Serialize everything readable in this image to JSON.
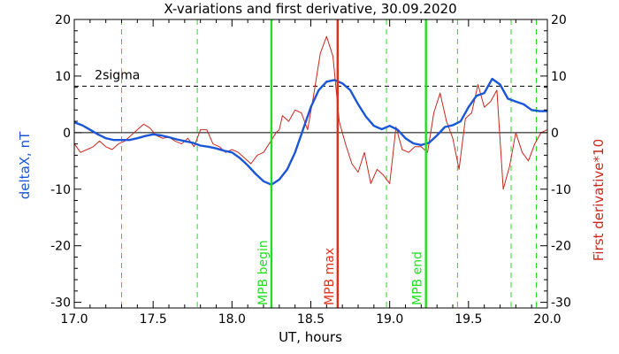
{
  "chart_data": {
    "type": "line",
    "title": "X-variations and first derivative, 30.09.2020",
    "xlabel": "UT, hours",
    "ylabel_left": "deltaX, nT",
    "ylabel_right": "First derivative*10",
    "xlim": [
      17.0,
      20.0
    ],
    "ylim": [
      -31,
      20
    ],
    "xticks": [
      "17.0",
      "17.5",
      "18.0",
      "18.5",
      "19.0",
      "19.5",
      "20.0"
    ],
    "yticks": [
      "-30",
      "-20",
      "-10",
      "0",
      "10",
      "20"
    ],
    "grid": false,
    "colors": {
      "deltaX": "#1a56d6",
      "derivative": "#c8281e",
      "mpb": "#22dd22",
      "max": "#e03018",
      "guide": "#000000",
      "text": "#000000"
    },
    "threshold": {
      "label": "2sigma",
      "value": 8.2
    },
    "markers": [
      {
        "label": "MPB begin",
        "x": 18.25,
        "kind": "mpb"
      },
      {
        "label": "MPB max",
        "x": 18.67,
        "kind": "max"
      },
      {
        "label": "MPB end",
        "x": 19.23,
        "kind": "mpb"
      }
    ],
    "dashed_lines_x": [
      17.3,
      17.78,
      18.98,
      19.43,
      19.77,
      19.93
    ],
    "series": [
      {
        "key": "deltaX",
        "x": [
          17.0,
          17.05,
          17.1,
          17.15,
          17.2,
          17.25,
          17.3,
          17.35,
          17.4,
          17.45,
          17.5,
          17.55,
          17.6,
          17.65,
          17.7,
          17.75,
          17.8,
          17.85,
          17.9,
          17.95,
          18.0,
          18.05,
          18.1,
          18.15,
          18.2,
          18.25,
          18.3,
          18.35,
          18.4,
          18.45,
          18.5,
          18.55,
          18.6,
          18.65,
          18.7,
          18.75,
          18.8,
          18.85,
          18.9,
          18.95,
          19.0,
          19.05,
          19.1,
          19.15,
          19.2,
          19.25,
          19.3,
          19.35,
          19.4,
          19.45,
          19.5,
          19.55,
          19.6,
          19.65,
          19.7,
          19.75,
          19.8,
          19.85,
          19.9,
          19.95,
          20.0
        ],
        "values": [
          1.8,
          1.3,
          0.5,
          -0.3,
          -1.0,
          -1.3,
          -1.3,
          -1.3,
          -1.0,
          -0.6,
          -0.3,
          -0.5,
          -0.8,
          -1.2,
          -1.5,
          -1.8,
          -2.3,
          -2.5,
          -2.8,
          -3.2,
          -3.5,
          -4.5,
          -5.8,
          -7.3,
          -8.6,
          -9.2,
          -8.3,
          -6.5,
          -3.5,
          0.5,
          4.5,
          7.5,
          9.0,
          9.3,
          8.7,
          7.5,
          5.0,
          2.8,
          1.2,
          0.6,
          1.2,
          0.5,
          -1.0,
          -1.9,
          -2.2,
          -1.8,
          -0.5,
          1.0,
          1.3,
          2.0,
          4.5,
          6.5,
          7.0,
          9.5,
          8.5,
          6.0,
          5.5,
          5.0,
          4.0,
          3.8,
          3.8
        ]
      },
      {
        "key": "derivative",
        "x": [
          17.0,
          17.04,
          17.08,
          17.12,
          17.16,
          17.2,
          17.24,
          17.28,
          17.32,
          17.36,
          17.4,
          17.44,
          17.48,
          17.52,
          17.56,
          17.6,
          17.64,
          17.68,
          17.72,
          17.76,
          17.8,
          17.84,
          17.88,
          17.92,
          17.96,
          18.0,
          18.04,
          18.08,
          18.12,
          18.16,
          18.2,
          18.24,
          18.28,
          18.3,
          18.32,
          18.36,
          18.4,
          18.44,
          18.48,
          18.52,
          18.56,
          18.6,
          18.64,
          18.68,
          18.72,
          18.76,
          18.8,
          18.84,
          18.88,
          18.92,
          18.96,
          19.0,
          19.04,
          19.08,
          19.12,
          19.16,
          19.2,
          19.24,
          19.28,
          19.32,
          19.36,
          19.4,
          19.44,
          19.48,
          19.52,
          19.56,
          19.6,
          19.64,
          19.68,
          19.72,
          19.76,
          19.8,
          19.84,
          19.88,
          19.92,
          19.96,
          20.0
        ],
        "values": [
          -2.0,
          -3.5,
          -3.0,
          -2.5,
          -1.5,
          -2.5,
          -3.0,
          -2.0,
          -1.5,
          -0.5,
          0.5,
          1.5,
          0.8,
          -0.5,
          -1.0,
          -0.8,
          -1.5,
          -2.0,
          -1.0,
          -2.5,
          0.5,
          0.5,
          -2.0,
          -2.5,
          -3.5,
          -3.0,
          -3.5,
          -4.5,
          -5.5,
          -4.0,
          -3.5,
          -1.8,
          0.0,
          0.5,
          3.0,
          2.0,
          4.0,
          3.5,
          0.5,
          7.0,
          14.0,
          17.0,
          13.5,
          2.0,
          -2.0,
          -5.5,
          -7.0,
          -3.5,
          -9.0,
          -6.5,
          -7.5,
          -9.0,
          1.0,
          -3.0,
          -3.5,
          -2.5,
          -2.5,
          -3.5,
          3.5,
          7.0,
          2.0,
          -1.0,
          -6.5,
          2.5,
          3.5,
          8.5,
          4.5,
          5.5,
          7.5,
          -10.0,
          -6.0,
          0.0,
          -3.5,
          -5.0,
          -2.0,
          0.0,
          0.5
        ]
      }
    ]
  }
}
